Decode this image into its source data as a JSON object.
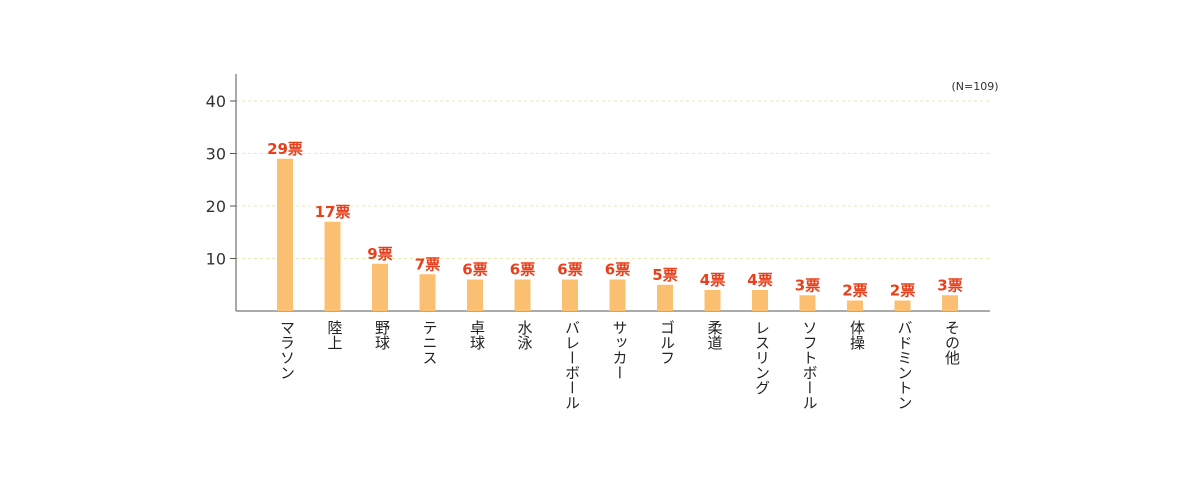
{
  "chart_data": {
    "type": "bar",
    "note": "(N=109)",
    "categories": [
      "マラソン",
      "陸上",
      "野球",
      "テニス",
      "卓球",
      "水泳",
      "バレーボール",
      "サッカー",
      "ゴルフ",
      "柔道",
      "レスリング",
      "ソフトボール",
      "体操",
      "バドミントン",
      "その他"
    ],
    "values": [
      29,
      17,
      9,
      7,
      6,
      6,
      6,
      6,
      5,
      4,
      4,
      3,
      2,
      2,
      3
    ],
    "data_labels": [
      "29票",
      "17票",
      "9票",
      "7票",
      "6票",
      "6票",
      "6票",
      "6票",
      "5票",
      "4票",
      "4票",
      "3票",
      "2票",
      "2票",
      "3票"
    ],
    "yticks": [
      "10",
      "20",
      "30",
      "40"
    ],
    "ylim": [
      0,
      45
    ],
    "grid": true,
    "bar_color": "#fbbf72",
    "label_color": "#e8401c",
    "grid_color": "#e8e8b8"
  }
}
